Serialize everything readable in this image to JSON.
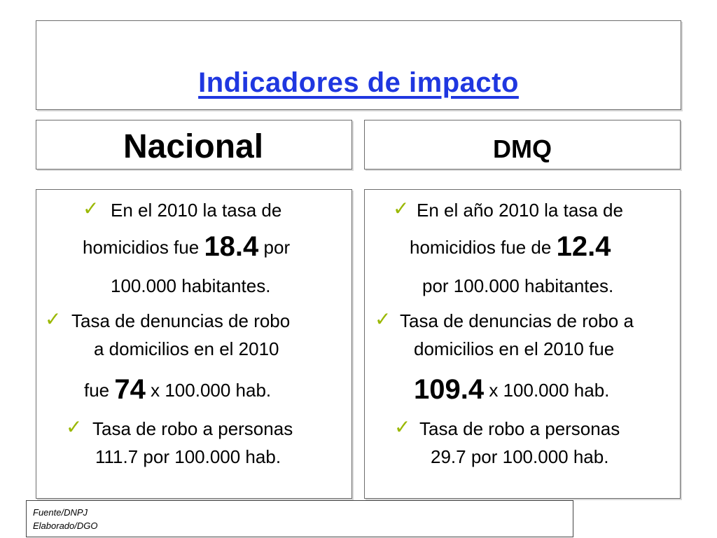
{
  "title": "Indicadores de impacto",
  "left": {
    "header": "Nacional",
    "item1_line1": "En el 2010 la tasa de",
    "item1_line2_pre": "homicidios fue",
    "item1_value": "18.4",
    "item1_line2_post": "por",
    "item1_line3": "100.000 habitantes.",
    "item2_line1": "Tasa  de denuncias  de  robo",
    "item2_line2": "a domicilios  en el 2010",
    "item2_line3_pre": "fue",
    "item2_value": "74",
    "item2_line3_post": "x 100.000 hab.",
    "item3_line1": "Tasa de robo a personas",
    "item3_line2": "111.7 por 100.000 hab."
  },
  "right": {
    "header": "DMQ",
    "item1_line1": "En el año 2010 la tasa de",
    "item1_line2_pre": "homicidios  fue de",
    "item1_value": "12.4",
    "item1_line3": "por 100.000 habitantes.",
    "item2_line1": "Tasa de denuncias de robo a",
    "item2_line2": "domicilios en el 2010  fue",
    "item2_value": "109.4",
    "item2_line3_post": "x 100.000 hab.",
    "item3_line1": "Tasa de robo a personas",
    "item3_line2": "29.7 por 100.000 hab."
  },
  "footer": {
    "source": "Fuente/DNPJ",
    "author": "Elaborado/DGO"
  },
  "colors": {
    "title": "#1f37e0",
    "check": "#9ab800"
  },
  "icons": {
    "bullet": "checkmark-icon"
  }
}
